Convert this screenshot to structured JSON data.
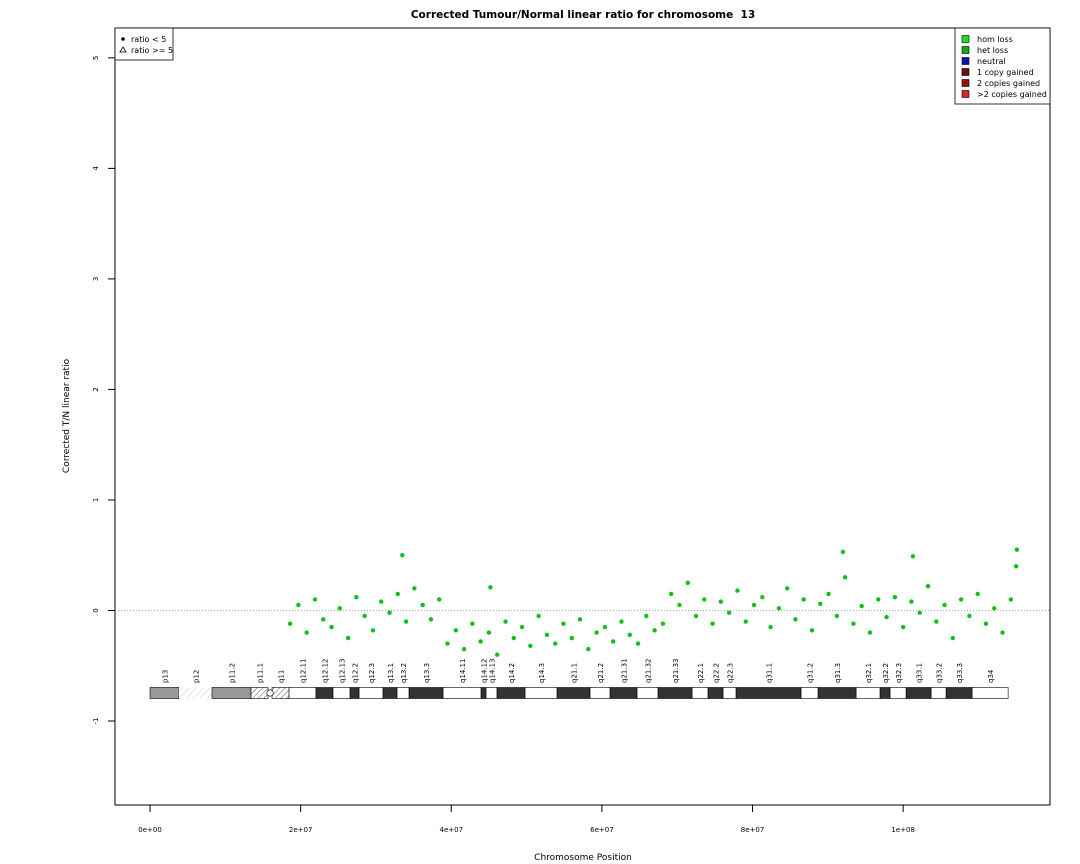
{
  "chart_data": {
    "type": "scatter",
    "title": "Corrected Tumour/Normal linear ratio for chromosome  13",
    "x_label": "Chromosome Position",
    "y_label": "Corrected T/N linear ratio",
    "xlim": [
      -4650000,
      119500000
    ],
    "ylim": [
      -1.76,
      5.27
    ],
    "xticks": [
      {
        "value": 0,
        "label": "0e+00"
      },
      {
        "value": 20000000,
        "label": "2e+07"
      },
      {
        "value": 40000000,
        "label": "4e+07"
      },
      {
        "value": 60000000,
        "label": "6e+07"
      },
      {
        "value": 80000000,
        "label": "8e+07"
      },
      {
        "value": 100000000,
        "label": "1e+08"
      }
    ],
    "yticks": [
      -1,
      0,
      1,
      2,
      3,
      4,
      5
    ],
    "reference_line": 0,
    "color": "#11c011",
    "x": [
      18600000,
      19700000,
      20800000,
      21900000,
      23000000,
      24100000,
      25200000,
      26300000,
      27400000,
      28500000,
      29600000,
      30700000,
      31800000,
      32900000,
      34000000,
      35100000,
      36200000,
      37300000,
      38400000,
      39500000,
      40600000,
      41700000,
      42800000,
      43900000,
      45000000,
      46100000,
      47200000,
      48300000,
      49400000,
      50500000,
      51600000,
      52700000,
      53800000,
      54900000,
      56000000,
      57100000,
      58200000,
      59300000,
      60400000,
      61500000,
      62600000,
      63700000,
      64800000,
      65900000,
      67000000,
      68100000,
      69200000,
      70300000,
      71400000,
      72500000,
      73600000,
      74700000,
      75800000,
      76900000,
      78000000,
      79100000,
      80200000,
      81300000,
      82400000,
      83500000,
      84600000,
      85700000,
      86800000,
      87900000,
      89000000,
      90100000,
      91200000,
      92300000,
      93400000,
      94500000,
      95600000,
      96700000,
      97800000,
      98900000,
      100000000,
      101100000,
      102200000,
      103300000,
      104400000,
      105500000,
      106600000,
      107700000,
      108800000,
      109900000,
      111000000,
      112100000,
      113200000,
      114300000,
      115000000,
      33500000,
      92000000,
      101300000,
      115100000,
      45200000
    ],
    "values": [
      -0.12,
      0.05,
      -0.2,
      0.1,
      -0.08,
      -0.15,
      0.02,
      -0.25,
      0.12,
      -0.05,
      -0.18,
      0.08,
      -0.02,
      0.15,
      -0.1,
      0.2,
      0.05,
      -0.08,
      0.1,
      -0.3,
      -0.18,
      -0.35,
      -0.12,
      -0.28,
      -0.2,
      -0.4,
      -0.1,
      -0.25,
      -0.15,
      -0.32,
      -0.05,
      -0.22,
      -0.3,
      -0.12,
      -0.25,
      -0.08,
      -0.35,
      -0.2,
      -0.15,
      -0.28,
      -0.1,
      -0.22,
      -0.3,
      -0.05,
      -0.18,
      -0.12,
      0.15,
      0.05,
      0.25,
      -0.05,
      0.1,
      -0.12,
      0.08,
      -0.02,
      0.18,
      -0.1,
      0.05,
      0.12,
      -0.15,
      0.02,
      0.2,
      -0.08,
      0.1,
      -0.18,
      0.06,
      0.15,
      -0.05,
      0.3,
      -0.12,
      0.04,
      -0.2,
      0.1,
      -0.06,
      0.12,
      -0.15,
      0.08,
      -0.02,
      0.22,
      -0.1,
      0.05,
      -0.25,
      0.1,
      -0.05,
      0.15,
      -0.12,
      0.02,
      -0.2,
      0.1,
      0.4,
      0.5,
      0.53,
      0.49,
      0.55,
      0.21
    ],
    "shape_legend": [
      {
        "label": "ratio < 5",
        "symbol": "circle"
      },
      {
        "label": "ratio >= 5",
        "symbol": "triangle"
      }
    ],
    "legend": [
      {
        "label": "hom loss",
        "color": "#22dd22"
      },
      {
        "label": "het loss",
        "color": "#11aa11"
      },
      {
        "label": "neutral",
        "color": "#1111aa"
      },
      {
        "label": "1 copy gained",
        "color": "#661111"
      },
      {
        "label": "2 copies gained",
        "color": "#991111"
      },
      {
        "label": ">2 copies gained",
        "color": "#dd2222"
      }
    ],
    "bands": [
      {
        "label": "p13",
        "start": 0,
        "end": 3850000,
        "stain": "gvar"
      },
      {
        "label": "p12",
        "start": 3850000,
        "end": 8230000,
        "stain": "stalk"
      },
      {
        "label": "p11.2",
        "start": 8230000,
        "end": 13410000,
        "stain": "gvar"
      },
      {
        "label": "p11.1",
        "start": 13410000,
        "end": 15670000,
        "stain": "acen"
      },
      {
        "label": "q11",
        "start": 16200000,
        "end": 18460000,
        "stain": "acen"
      },
      {
        "label": "q12.11",
        "start": 18460000,
        "end": 22040000,
        "stain": "gneg"
      },
      {
        "label": "q12.12",
        "start": 22040000,
        "end": 24300000,
        "stain": "gpos"
      },
      {
        "label": "q12.13",
        "start": 24300000,
        "end": 26560000,
        "stain": "gneg"
      },
      {
        "label": "q12.2",
        "start": 26560000,
        "end": 27760000,
        "stain": "gpos"
      },
      {
        "label": "q12.3",
        "start": 27760000,
        "end": 30940000,
        "stain": "gneg"
      },
      {
        "label": "q13.1",
        "start": 30940000,
        "end": 32800000,
        "stain": "gpos"
      },
      {
        "label": "q13.2",
        "start": 32800000,
        "end": 34400000,
        "stain": "gneg"
      },
      {
        "label": "q13.3",
        "start": 34400000,
        "end": 38910000,
        "stain": "gpos"
      },
      {
        "label": "q14.11",
        "start": 38910000,
        "end": 43960000,
        "stain": "gneg"
      },
      {
        "label": "q14.12",
        "start": 43960000,
        "end": 44620000,
        "stain": "gpos"
      },
      {
        "label": "q14.13",
        "start": 44620000,
        "end": 46080000,
        "stain": "gneg"
      },
      {
        "label": "q14.2",
        "start": 46080000,
        "end": 49800000,
        "stain": "gpos"
      },
      {
        "label": "q14.3",
        "start": 49800000,
        "end": 54050000,
        "stain": "gneg"
      },
      {
        "label": "q21.1",
        "start": 54050000,
        "end": 58430000,
        "stain": "gpos"
      },
      {
        "label": "q21.2",
        "start": 58430000,
        "end": 61090000,
        "stain": "gneg"
      },
      {
        "label": "q21.31",
        "start": 61090000,
        "end": 64670000,
        "stain": "gpos"
      },
      {
        "label": "q21.32",
        "start": 64670000,
        "end": 67460000,
        "stain": "gneg"
      },
      {
        "label": "q21.33",
        "start": 67460000,
        "end": 71980000,
        "stain": "gpos"
      },
      {
        "label": "q22.1",
        "start": 71980000,
        "end": 74100000,
        "stain": "gneg"
      },
      {
        "label": "q22.2",
        "start": 74100000,
        "end": 76090000,
        "stain": "gpos"
      },
      {
        "label": "q22.3",
        "start": 76090000,
        "end": 77820000,
        "stain": "gneg"
      },
      {
        "label": "q31.1",
        "start": 77820000,
        "end": 86450000,
        "stain": "gpos"
      },
      {
        "label": "q31.2",
        "start": 86450000,
        "end": 88710000,
        "stain": "gneg"
      },
      {
        "label": "q31.3",
        "start": 88710000,
        "end": 93760000,
        "stain": "gpos"
      },
      {
        "label": "q32.1",
        "start": 93760000,
        "end": 96940000,
        "stain": "gneg"
      },
      {
        "label": "q32.2",
        "start": 96940000,
        "end": 98270000,
        "stain": "gpos"
      },
      {
        "label": "q32.3",
        "start": 98270000,
        "end": 100400000,
        "stain": "gneg"
      },
      {
        "label": "q33.1",
        "start": 100400000,
        "end": 103720000,
        "stain": "gpos"
      },
      {
        "label": "q33.2",
        "start": 103720000,
        "end": 105710000,
        "stain": "gneg"
      },
      {
        "label": "q33.3",
        "start": 105710000,
        "end": 109160000,
        "stain": "gpos"
      },
      {
        "label": "q34",
        "start": 109160000,
        "end": 113940000,
        "stain": "gneg"
      }
    ]
  }
}
